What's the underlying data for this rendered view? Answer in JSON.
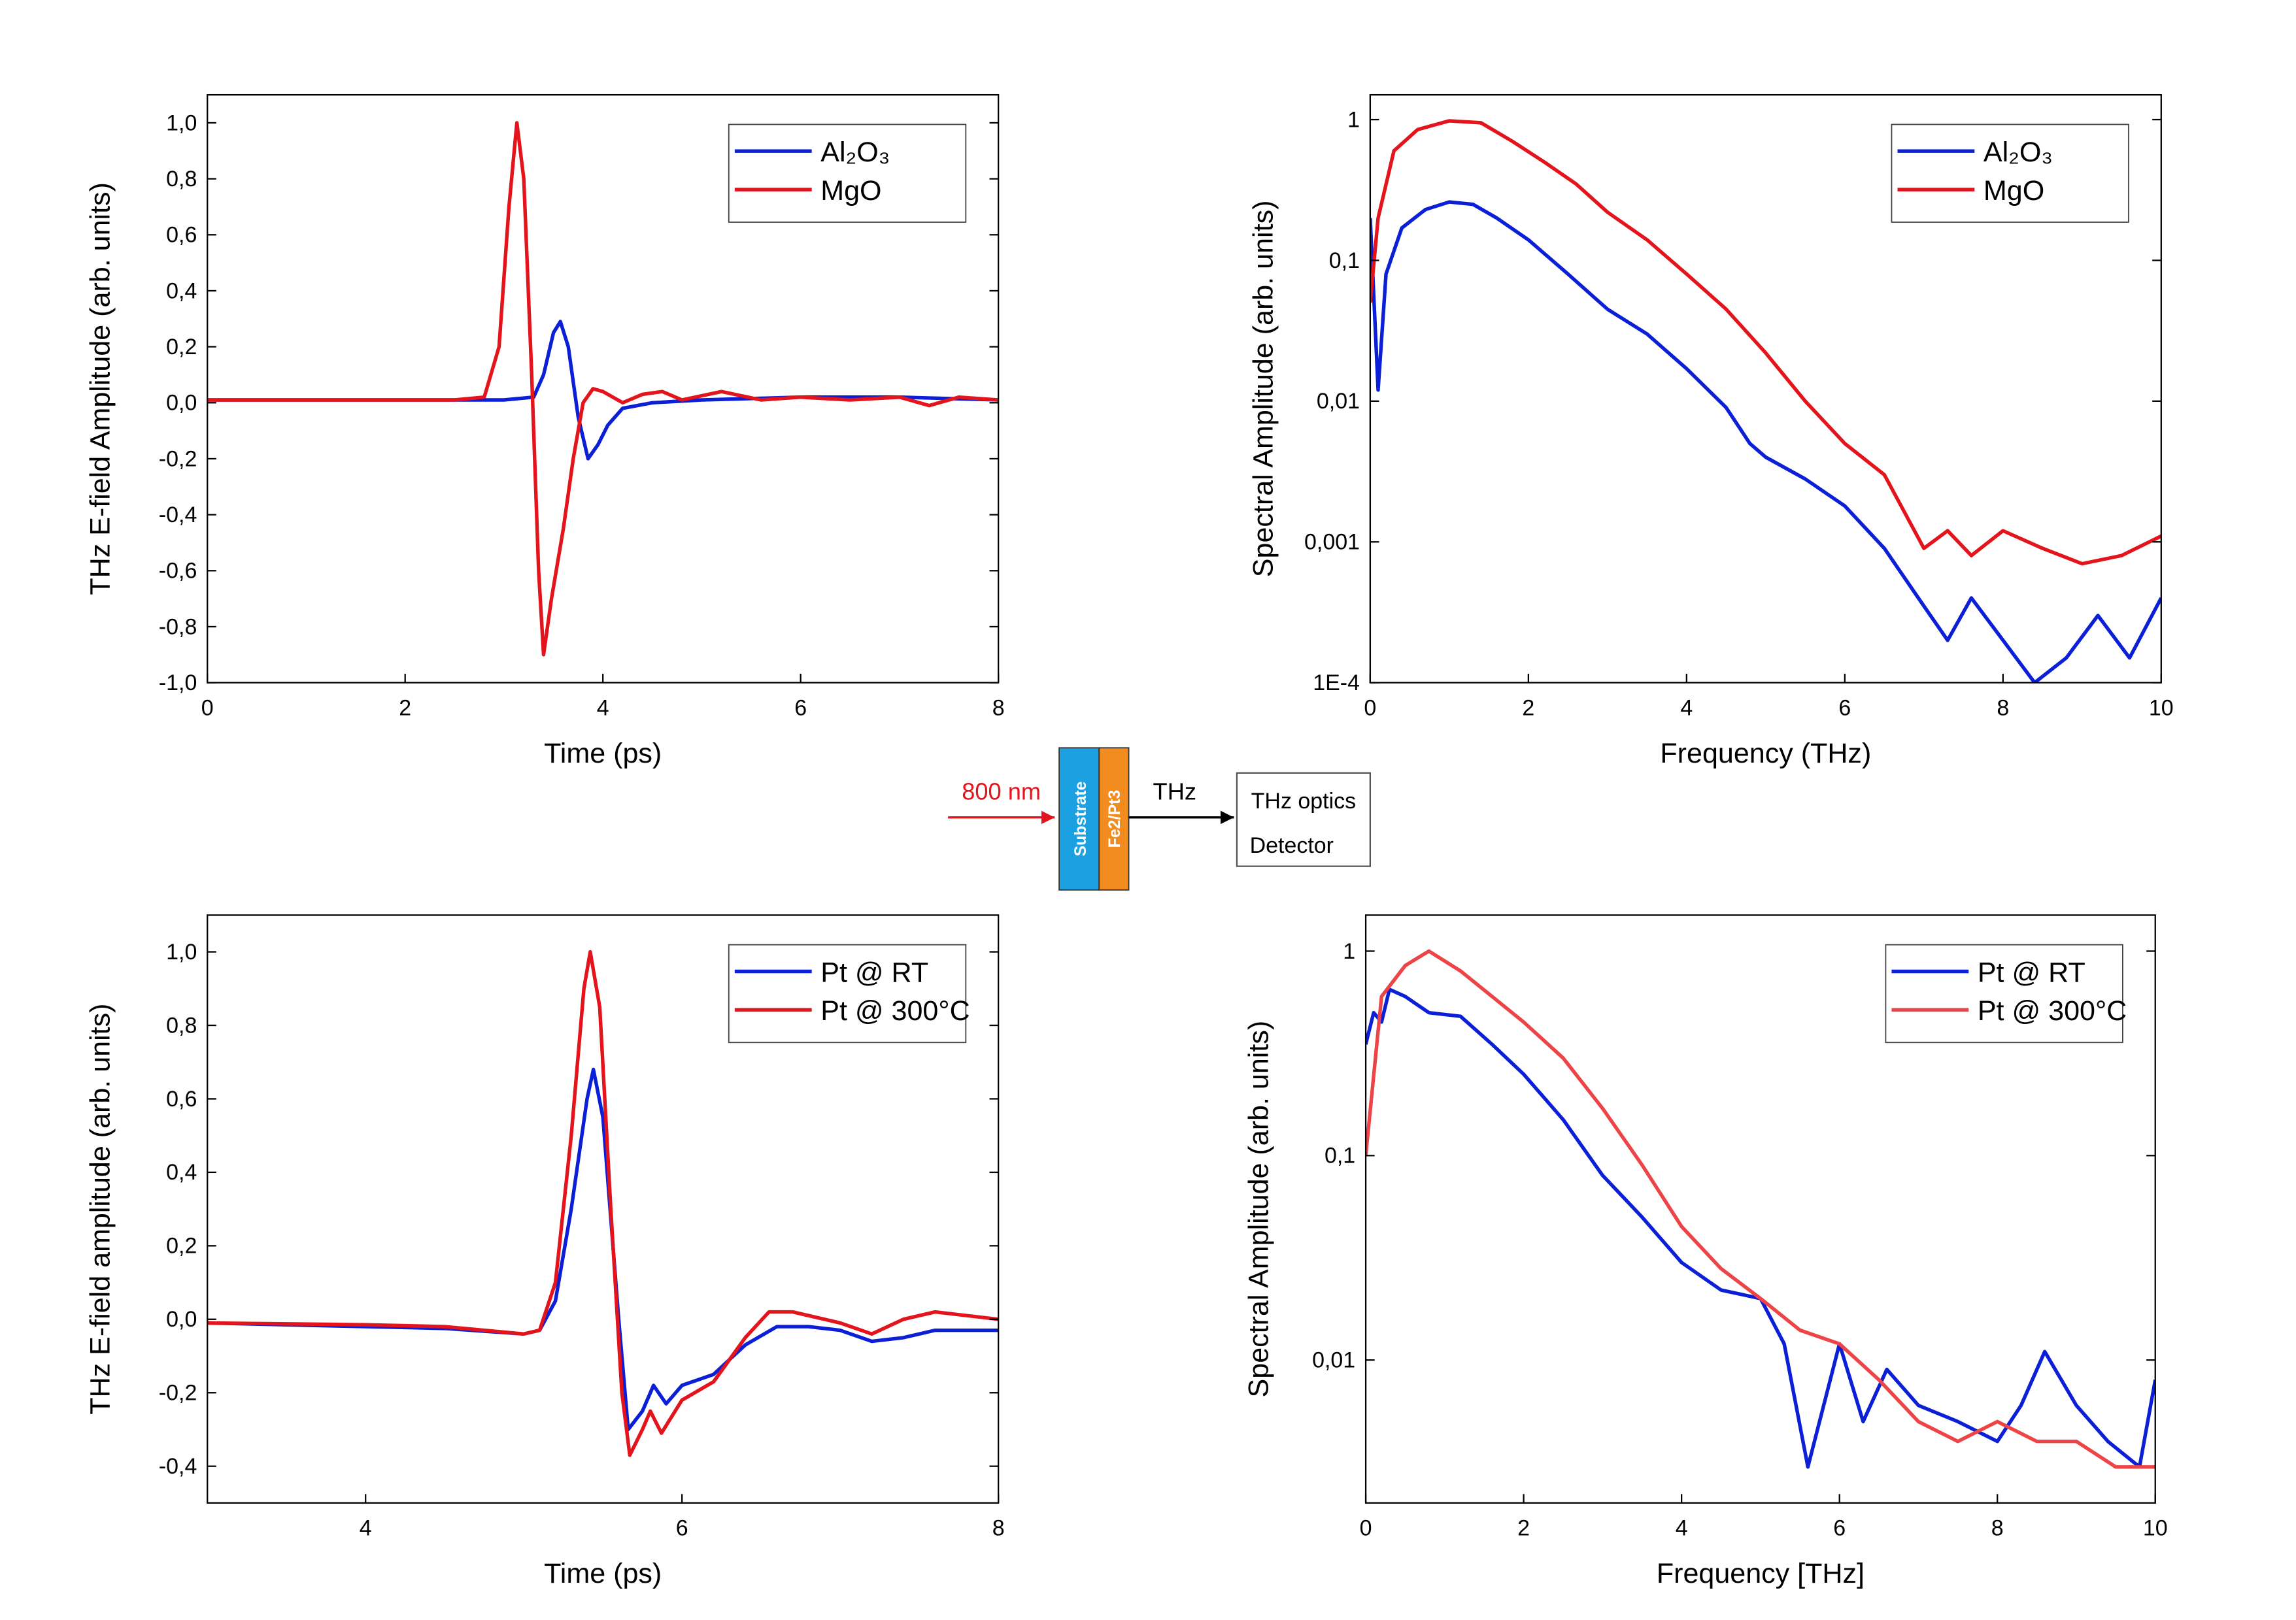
{
  "chart_data": [
    {
      "type": "line",
      "xlabel": "Time (ps)",
      "ylabel": "THz E-field Amplitude (arb. units)",
      "xlim": [
        0,
        8
      ],
      "xticks": [
        0,
        2,
        4,
        6,
        8
      ],
      "ylim": [
        -1,
        1.1
      ],
      "yticks": [
        {
          "value": -1,
          "label": "-1,0"
        },
        {
          "value": -0.8,
          "label": "-0,8"
        },
        {
          "value": -0.6,
          "label": "-0,6"
        },
        {
          "value": -0.4,
          "label": "-0,4"
        },
        {
          "value": -0.2,
          "label": "-0,2"
        },
        {
          "value": 0,
          "label": "0,0"
        },
        {
          "value": 0.2,
          "label": "0,2"
        },
        {
          "value": 0.4,
          "label": "0,4"
        },
        {
          "value": 0.6,
          "label": "0,6"
        },
        {
          "value": 0.8,
          "label": "0,8"
        },
        {
          "value": 1,
          "label": "1,0"
        }
      ],
      "log_y": false,
      "legend": "upper right",
      "series": [
        {
          "name": "Al₂O₃",
          "color": "#0a1fd6",
          "x": [
            0,
            2,
            3.0,
            3.3,
            3.4,
            3.5,
            3.57,
            3.65,
            3.75,
            3.85,
            3.95,
            4.05,
            4.2,
            4.5,
            5,
            6,
            7,
            8
          ],
          "values": [
            0.01,
            0.01,
            0.01,
            0.02,
            0.1,
            0.25,
            0.29,
            0.2,
            -0.05,
            -0.2,
            -0.15,
            -0.08,
            -0.02,
            0.0,
            0.01,
            0.02,
            0.02,
            0.01
          ]
        },
        {
          "name": "MgO",
          "color": "#e3141b",
          "x": [
            0,
            2.5,
            2.8,
            2.95,
            3.05,
            3.13,
            3.2,
            3.28,
            3.35,
            3.4,
            3.48,
            3.6,
            3.7,
            3.8,
            3.9,
            4.0,
            4.2,
            4.4,
            4.6,
            4.8,
            5.2,
            5.6,
            6,
            6.5,
            7,
            7.3,
            7.6,
            8
          ],
          "values": [
            0.01,
            0.01,
            0.02,
            0.2,
            0.7,
            1.0,
            0.8,
            0.1,
            -0.6,
            -0.9,
            -0.7,
            -0.45,
            -0.2,
            0.0,
            0.05,
            0.04,
            0.0,
            0.03,
            0.04,
            0.01,
            0.04,
            0.01,
            0.02,
            0.01,
            0.02,
            -0.01,
            0.02,
            0.01
          ]
        }
      ]
    },
    {
      "type": "line",
      "xlabel": "Frequency (THz)",
      "ylabel": "Spectral Amplitude (arb. units)",
      "xlim": [
        0,
        10
      ],
      "xticks": [
        0,
        2,
        4,
        6,
        8,
        10
      ],
      "ylim": [
        0.0001,
        1.5
      ],
      "yticks": [
        {
          "value": 0.0001,
          "label": "1E-4"
        },
        {
          "value": 0.001,
          "label": "0,001"
        },
        {
          "value": 0.01,
          "label": "0,01"
        },
        {
          "value": 0.1,
          "label": "0,1"
        },
        1
      ],
      "log_y": true,
      "legend": "upper right",
      "series": [
        {
          "name": "Al₂O₃",
          "color": "#0a1fd6",
          "x": [
            0,
            0.1,
            0.2,
            0.4,
            0.7,
            1.0,
            1.3,
            1.6,
            2.0,
            2.5,
            3.0,
            3.5,
            4.0,
            4.5,
            4.8,
            5.0,
            5.5,
            6.0,
            6.5,
            7.0,
            7.3,
            7.6,
            8.0,
            8.4,
            8.8,
            9.2,
            9.6,
            10
          ],
          "values": [
            0.2,
            0.012,
            0.08,
            0.17,
            0.23,
            0.26,
            0.25,
            0.2,
            0.14,
            0.08,
            0.045,
            0.03,
            0.017,
            0.009,
            0.005,
            0.004,
            0.0028,
            0.0018,
            0.0009,
            0.00035,
            0.0002,
            0.0004,
            0.0002,
            0.0001,
            0.00015,
            0.0003,
            0.00015,
            0.0004
          ]
        },
        {
          "name": "MgO",
          "color": "#e3141b",
          "x": [
            0,
            0.1,
            0.3,
            0.6,
            1.0,
            1.4,
            1.8,
            2.2,
            2.6,
            3.0,
            3.5,
            4.0,
            4.5,
            5.0,
            5.5,
            6.0,
            6.5,
            7.0,
            7.3,
            7.6,
            8,
            8.5,
            9,
            9.5,
            10
          ],
          "values": [
            0.05,
            0.2,
            0.6,
            0.85,
            0.98,
            0.95,
            0.7,
            0.5,
            0.35,
            0.22,
            0.14,
            0.08,
            0.045,
            0.022,
            0.01,
            0.005,
            0.003,
            0.0009,
            0.0012,
            0.0008,
            0.0012,
            0.0009,
            0.0007,
            0.0008,
            0.0011
          ]
        }
      ]
    },
    {
      "type": "line",
      "xlabel": "Time (ps)",
      "ylabel": "THz E-field amplitude (arb. units)",
      "xlim": [
        3,
        8
      ],
      "xticks": [
        4,
        6,
        8
      ],
      "ylim": [
        -0.5,
        1.1
      ],
      "yticks": [
        {
          "value": -0.4,
          "label": "-0,4"
        },
        {
          "value": -0.2,
          "label": "-0,2"
        },
        {
          "value": 0,
          "label": "0,0"
        },
        {
          "value": 0.2,
          "label": "0,2"
        },
        {
          "value": 0.4,
          "label": "0,4"
        },
        {
          "value": 0.6,
          "label": "0,6"
        },
        {
          "value": 0.8,
          "label": "0,8"
        },
        {
          "value": 1,
          "label": "1,0"
        }
      ],
      "log_y": false,
      "legend": "upper right",
      "series": [
        {
          "name": "Pt @ RT",
          "color": "#0a1fd6",
          "x": [
            3,
            4,
            4.5,
            5,
            5.1,
            5.2,
            5.3,
            5.4,
            5.44,
            5.5,
            5.6,
            5.66,
            5.75,
            5.82,
            5.9,
            6.0,
            6.2,
            6.4,
            6.6,
            6.8,
            7.0,
            7.2,
            7.4,
            7.6,
            8
          ],
          "values": [
            -0.01,
            -0.02,
            -0.025,
            -0.04,
            -0.03,
            0.05,
            0.3,
            0.6,
            0.68,
            0.55,
            0.0,
            -0.3,
            -0.25,
            -0.18,
            -0.23,
            -0.18,
            -0.15,
            -0.07,
            -0.02,
            -0.02,
            -0.03,
            -0.06,
            -0.05,
            -0.03,
            -0.03
          ]
        },
        {
          "name": "Pt @ 300°C",
          "color": "#e3141b",
          "x": [
            3,
            4,
            4.5,
            5,
            5.1,
            5.2,
            5.3,
            5.38,
            5.42,
            5.48,
            5.55,
            5.62,
            5.67,
            5.75,
            5.8,
            5.87,
            6.0,
            6.2,
            6.4,
            6.55,
            6.7,
            6.9,
            7.0,
            7.2,
            7.4,
            7.6,
            8
          ],
          "values": [
            -0.01,
            -0.015,
            -0.02,
            -0.04,
            -0.03,
            0.1,
            0.5,
            0.9,
            1.0,
            0.85,
            0.3,
            -0.2,
            -0.37,
            -0.3,
            -0.25,
            -0.31,
            -0.22,
            -0.17,
            -0.05,
            0.02,
            0.02,
            0.0,
            -0.01,
            -0.04,
            0.0,
            0.02,
            0.0
          ]
        }
      ]
    },
    {
      "type": "line",
      "xlabel": "Frequency [THz]",
      "ylabel": "Spectral Amplitude (arb. units)",
      "xlim": [
        0,
        10
      ],
      "xticks": [
        0,
        2,
        4,
        6,
        8,
        10
      ],
      "ylim": [
        0.002,
        1.5
      ],
      "yticks": [
        {
          "value": 0.01,
          "label": "0,01"
        },
        {
          "value": 0.1,
          "label": "0,1"
        },
        1
      ],
      "log_y": true,
      "legend": "upper right",
      "series": [
        {
          "name": "Pt @ RT",
          "color": "#0a1fd6",
          "x": [
            0,
            0.1,
            0.2,
            0.3,
            0.5,
            0.8,
            1.2,
            1.6,
            2.0,
            2.5,
            3.0,
            3.5,
            4.0,
            4.5,
            5.0,
            5.3,
            5.6,
            6.0,
            6.3,
            6.6,
            7.0,
            7.5,
            8.0,
            8.3,
            8.6,
            9.0,
            9.4,
            9.8,
            10
          ],
          "values": [
            0.35,
            0.5,
            0.45,
            0.65,
            0.6,
            0.5,
            0.48,
            0.35,
            0.25,
            0.15,
            0.08,
            0.05,
            0.03,
            0.022,
            0.02,
            0.012,
            0.003,
            0.012,
            0.005,
            0.009,
            0.006,
            0.005,
            0.004,
            0.006,
            0.011,
            0.006,
            0.004,
            0.003,
            0.008
          ]
        },
        {
          "name": "Pt @ 300°C",
          "color": "#ec4447",
          "x": [
            0,
            0.2,
            0.5,
            0.8,
            1.2,
            1.6,
            2.0,
            2.5,
            3.0,
            3.5,
            4.0,
            4.5,
            5.0,
            5.5,
            6.0,
            6.5,
            7.0,
            7.5,
            8.0,
            8.5,
            9.0,
            9.5,
            10
          ],
          "values": [
            0.1,
            0.6,
            0.85,
            1.0,
            0.8,
            0.6,
            0.45,
            0.3,
            0.17,
            0.09,
            0.045,
            0.028,
            0.02,
            0.014,
            0.012,
            0.008,
            0.005,
            0.004,
            0.005,
            0.004,
            0.004,
            0.003,
            0.003
          ]
        }
      ]
    }
  ],
  "diagram": {
    "pump": "800 nm",
    "substrate": "Substrate",
    "film": "Fe2/Pt3",
    "emission": "THz",
    "detector": [
      "THz optics",
      "Detector"
    ]
  }
}
